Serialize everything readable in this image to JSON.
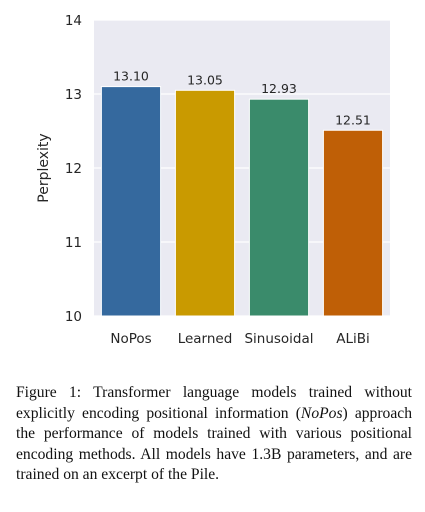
{
  "chart_data": {
    "type": "bar",
    "categories": [
      "NoPos",
      "Learned",
      "Sinusoidal",
      "ALiBi"
    ],
    "values": [
      13.1,
      13.05,
      12.93,
      12.51
    ],
    "value_labels": [
      "13.10",
      "13.05",
      "12.93",
      "12.51"
    ],
    "colors": [
      "#35699e",
      "#c99a00",
      "#3a8b6b",
      "#bf5f06"
    ],
    "ylabel": "Perplexity",
    "ylim": [
      10,
      14
    ],
    "yticks": [
      "10",
      "11",
      "12",
      "13",
      "14"
    ],
    "grid": "horizontal",
    "background": "#eaeaf2"
  },
  "caption": {
    "prefix": "Figure 1: Transformer language models trained without explicitly encoding positional information (",
    "emphasis": "NoPos",
    "suffix": ") approach the performance of models trained with various positional encoding methods.  All models have 1.3B parameters, and are trained on an excerpt of the Pile."
  }
}
